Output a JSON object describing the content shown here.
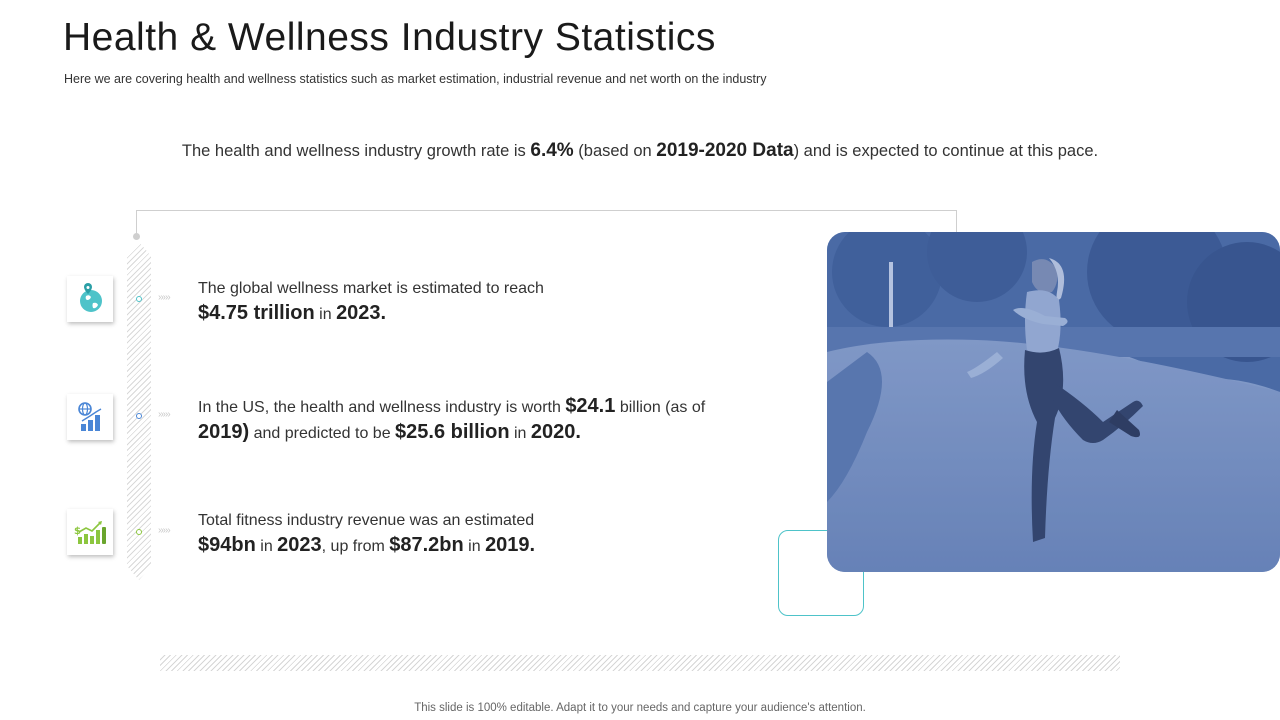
{
  "header": {
    "title": "Health & Wellness Industry Statistics",
    "subtitle": "Here we are covering  health and wellness statistics such as market estimation, industrial revenue  and net worth on the industry"
  },
  "growth": {
    "pre": "The health and wellness industry  growth rate is ",
    "rate": "6.4%",
    "mid": " (based on ",
    "period": "2019-2020 Data",
    "post": ") and is expected to continue at this pace."
  },
  "stats": [
    {
      "line1": "The global wellness market is estimated to reach",
      "value": "$4.75 trillion",
      "in": " in ",
      "year": "2023."
    },
    {
      "line1_pre": "In the US, the health and wellness industry is worth ",
      "value1": "$24.1",
      "line1_post": " billion (as of",
      "year1": "2019)",
      "mid": " and predicted to be ",
      "value2": "$25.6 billion",
      "in": " in ",
      "year2": "2020."
    },
    {
      "line1": "Total fitness industry revenue was an estimated",
      "value1": "$94bn",
      "in1": " in ",
      "year1": "2023",
      "mid": ", up from ",
      "value2": "$87.2bn",
      "in2": " in ",
      "year2": "2019."
    }
  ],
  "chevrons": "›››››",
  "icons": [
    "globe-map-pin-icon",
    "globe-bar-chart-icon",
    "dollar-growth-chart-icon"
  ],
  "colors": {
    "accent_teal": "#4ec3c9",
    "accent_blue": "#4a86d6",
    "accent_green": "#8cc63f",
    "photo_tint": "#4a6aa5"
  },
  "footer": "This slide is 100% editable. Adapt it to your needs and capture your audience's attention."
}
